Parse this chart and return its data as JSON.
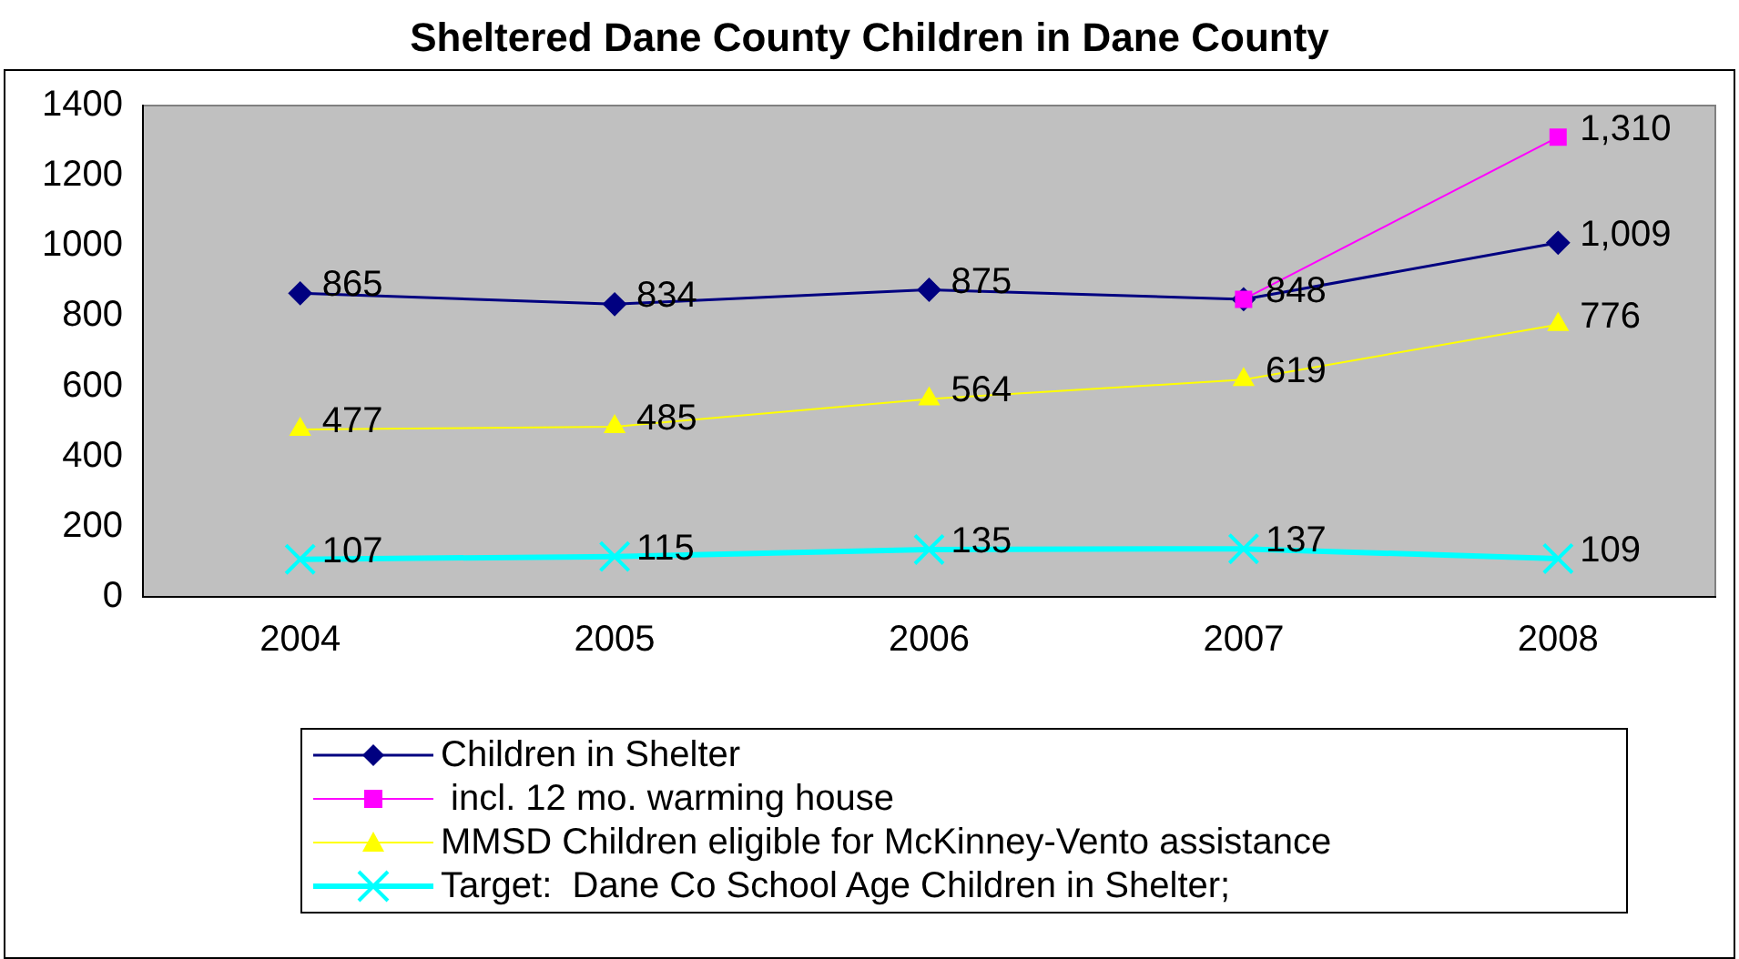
{
  "chart_data": {
    "type": "line",
    "title": "Sheltered Dane County Children in Dane County",
    "categories": [
      "2004",
      "2005",
      "2006",
      "2007",
      "2008"
    ],
    "ylim": [
      0,
      1400
    ],
    "yticks": [
      0,
      200,
      400,
      600,
      800,
      1000,
      1200,
      1400
    ],
    "grid": false,
    "legend": "bottom",
    "series": [
      {
        "name": "Children in Shelter",
        "color": "#000080",
        "marker": "diamond",
        "values": [
          865,
          834,
          875,
          848,
          1009
        ],
        "value_labels": [
          "865",
          "834",
          "875",
          "848",
          "1,009"
        ]
      },
      {
        "name": " incl. 12 mo. warming house",
        "color": "#ff00ff",
        "marker": "square",
        "values": [
          null,
          null,
          null,
          848,
          1310
        ],
        "value_labels": [
          null,
          null,
          null,
          null,
          "1,310"
        ]
      },
      {
        "name": "MMSD Children eligible for McKinney-Vento assistance",
        "color": "#ffff00",
        "marker": "triangle",
        "values": [
          477,
          485,
          564,
          619,
          776
        ],
        "value_labels": [
          "477",
          "485",
          "564",
          "619",
          "776"
        ]
      },
      {
        "name": "Target:  Dane Co School Age Children in Shelter;",
        "color": "#00ffff",
        "marker": "cross",
        "values": [
          107,
          115,
          135,
          137,
          109
        ],
        "value_labels": [
          "107",
          "115",
          "135",
          "137",
          "109"
        ]
      }
    ]
  }
}
